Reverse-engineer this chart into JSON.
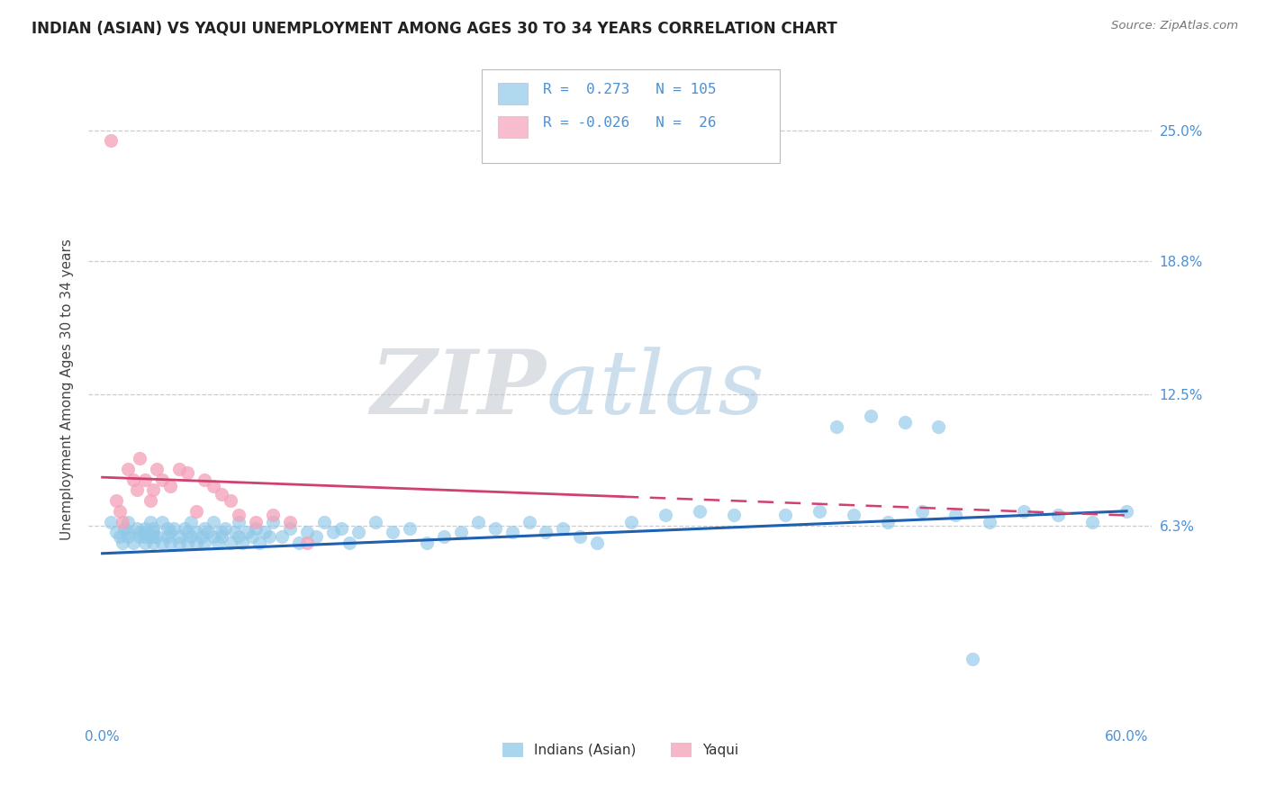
{
  "title": "INDIAN (ASIAN) VS YAQUI UNEMPLOYMENT AMONG AGES 30 TO 34 YEARS CORRELATION CHART",
  "source": "Source: ZipAtlas.com",
  "ylabel": "Unemployment Among Ages 30 to 34 years",
  "xlim": [
    -0.008,
    0.615
  ],
  "ylim": [
    -0.03,
    0.285
  ],
  "xticks": [
    0.0,
    0.6
  ],
  "xticklabels": [
    "0.0%",
    "60.0%"
  ],
  "yticks": [
    0.063,
    0.125,
    0.188,
    0.25
  ],
  "yticklabels": [
    "6.3%",
    "12.5%",
    "18.8%",
    "25.0%"
  ],
  "grid_color": "#cccccc",
  "bg_color": "#ffffff",
  "series1_color": "#8fc8e8",
  "series2_color": "#f4a0b8",
  "series1_label": "Indians (Asian)",
  "series2_label": "Yaqui",
  "trend1_color": "#2060b0",
  "trend2_color": "#d04070",
  "tick_color": "#4a90d9",
  "title_color": "#222222",
  "source_color": "#777777",
  "watermark_color": "#c5d8eb",
  "indian_x": [
    0.005,
    0.008,
    0.01,
    0.012,
    0.013,
    0.015,
    0.015,
    0.015,
    0.018,
    0.02,
    0.022,
    0.022,
    0.025,
    0.025,
    0.025,
    0.025,
    0.028,
    0.028,
    0.03,
    0.03,
    0.03,
    0.03,
    0.032,
    0.035,
    0.035,
    0.038,
    0.038,
    0.04,
    0.04,
    0.042,
    0.045,
    0.045,
    0.048,
    0.05,
    0.05,
    0.052,
    0.052,
    0.055,
    0.055,
    0.058,
    0.06,
    0.06,
    0.062,
    0.065,
    0.065,
    0.068,
    0.07,
    0.07,
    0.072,
    0.075,
    0.078,
    0.08,
    0.08,
    0.082,
    0.085,
    0.088,
    0.09,
    0.092,
    0.095,
    0.098,
    0.1,
    0.105,
    0.11,
    0.115,
    0.12,
    0.125,
    0.13,
    0.135,
    0.14,
    0.145,
    0.15,
    0.16,
    0.17,
    0.18,
    0.19,
    0.2,
    0.21,
    0.22,
    0.23,
    0.24,
    0.25,
    0.26,
    0.27,
    0.28,
    0.29,
    0.31,
    0.33,
    0.35,
    0.37,
    0.4,
    0.42,
    0.44,
    0.46,
    0.48,
    0.5,
    0.52,
    0.54,
    0.56,
    0.58,
    0.6,
    0.43,
    0.45,
    0.47,
    0.49,
    0.51
  ],
  "indian_y": [
    0.065,
    0.06,
    0.058,
    0.055,
    0.062,
    0.058,
    0.06,
    0.065,
    0.055,
    0.062,
    0.058,
    0.06,
    0.055,
    0.058,
    0.06,
    0.062,
    0.058,
    0.065,
    0.055,
    0.058,
    0.06,
    0.062,
    0.058,
    0.055,
    0.065,
    0.058,
    0.062,
    0.055,
    0.06,
    0.062,
    0.055,
    0.058,
    0.062,
    0.055,
    0.06,
    0.058,
    0.065,
    0.055,
    0.06,
    0.058,
    0.062,
    0.055,
    0.06,
    0.058,
    0.065,
    0.055,
    0.06,
    0.058,
    0.062,
    0.055,
    0.06,
    0.058,
    0.065,
    0.055,
    0.06,
    0.058,
    0.062,
    0.055,
    0.06,
    0.058,
    0.065,
    0.058,
    0.062,
    0.055,
    0.06,
    0.058,
    0.065,
    0.06,
    0.062,
    0.055,
    0.06,
    0.065,
    0.06,
    0.062,
    0.055,
    0.058,
    0.06,
    0.065,
    0.062,
    0.06,
    0.065,
    0.06,
    0.062,
    0.058,
    0.055,
    0.065,
    0.068,
    0.07,
    0.068,
    0.068,
    0.07,
    0.068,
    0.065,
    0.07,
    0.068,
    0.065,
    0.07,
    0.068,
    0.065,
    0.07,
    0.11,
    0.115,
    0.112,
    0.11,
    0.0
  ],
  "yaqui_x": [
    0.005,
    0.008,
    0.01,
    0.012,
    0.015,
    0.018,
    0.02,
    0.022,
    0.025,
    0.028,
    0.03,
    0.032,
    0.035,
    0.04,
    0.045,
    0.05,
    0.055,
    0.06,
    0.065,
    0.07,
    0.075,
    0.08,
    0.09,
    0.1,
    0.11,
    0.12
  ],
  "yaqui_y": [
    0.245,
    0.075,
    0.07,
    0.065,
    0.09,
    0.085,
    0.08,
    0.095,
    0.085,
    0.075,
    0.08,
    0.09,
    0.085,
    0.082,
    0.09,
    0.088,
    0.07,
    0.085,
    0.082,
    0.078,
    0.075,
    0.068,
    0.065,
    0.068,
    0.065,
    0.055
  ]
}
